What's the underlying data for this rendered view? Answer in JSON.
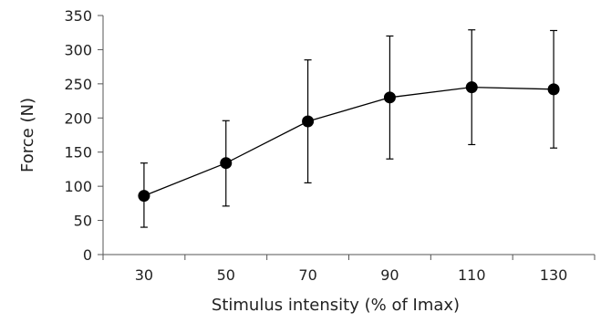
{
  "chart_data": {
    "type": "line",
    "title": "",
    "xlabel": "Stimulus intensity (% of Imax)",
    "ylabel": "Force (N)",
    "categories": [
      "30",
      "50",
      "70",
      "90",
      "110",
      "130"
    ],
    "ylim": [
      0,
      350
    ],
    "yticks": [
      0,
      50,
      100,
      150,
      200,
      250,
      300,
      350
    ],
    "grid": false,
    "legend": "none",
    "series": [
      {
        "values": [
          86,
          134,
          195,
          230,
          245,
          242
        ],
        "error_low": [
          40,
          71,
          105,
          140,
          161,
          156
        ],
        "error_high": [
          134,
          196,
          285,
          320,
          329,
          328
        ],
        "marker": "circle"
      }
    ],
    "colors": {
      "line": "#000000",
      "axis": "#555555",
      "text": "#222222"
    }
  }
}
